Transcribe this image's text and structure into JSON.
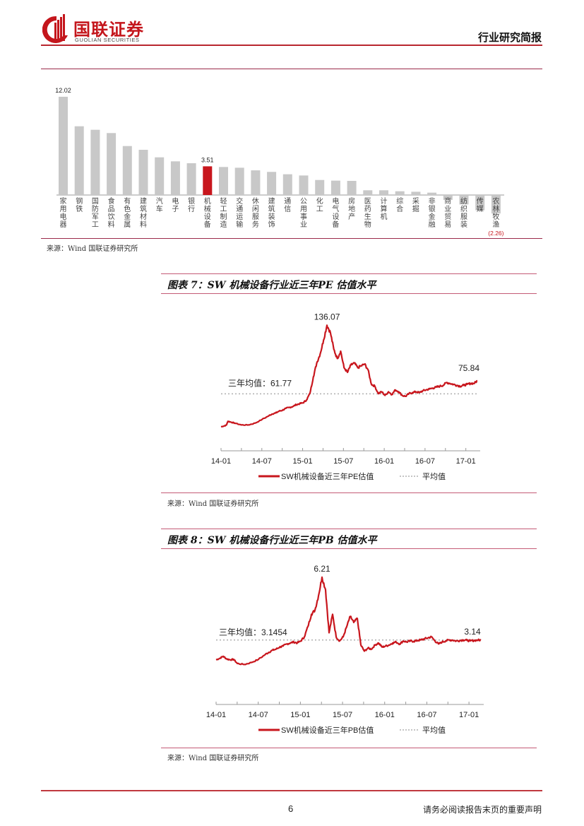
{
  "header": {
    "logo_cn": "国联证券",
    "logo_en": "GUOLIAN SECURITIES",
    "doc_type": "行业研究简报",
    "brand_color": "#c4161c"
  },
  "bar_chart_section": {
    "source": "来源：Wind   国联证券研究所"
  },
  "figure7": {
    "title": "图表 7：SW 机械设备行业近三年PE 估值水平",
    "source": "来源：Wind   国联证券研究所"
  },
  "figure8": {
    "title": "图表 8：SW 机械设备行业近三年PB 估值水平",
    "source": "来源：Wind   国联证券研究所"
  },
  "footer": {
    "page_number": "6",
    "disclaimer": "请务必阅读报告末页的重要声明"
  },
  "chart_data": [
    {
      "type": "bar",
      "title": "",
      "xlabel": "",
      "ylabel": "",
      "categories": [
        "家用电器",
        "钢铁",
        "国防军工",
        "食品饮料",
        "有色金属",
        "建筑材料",
        "汽车",
        "电子",
        "银行",
        "机械设备",
        "轻工制造",
        "交通运输",
        "休闲服务",
        "建筑装饰",
        "通信",
        "公用事业",
        "化工",
        "电气设备",
        "房地产",
        "医药生物",
        "计算机",
        "综合",
        "采掘",
        "非银金融",
        "商业贸易",
        "纺织服装",
        "传媒",
        "农林牧渔"
      ],
      "values": [
        12.02,
        8.41,
        7.98,
        7.58,
        5.99,
        5.53,
        4.61,
        4.12,
        3.89,
        3.51,
        3.43,
        3.34,
        3.02,
        2.83,
        2.54,
        2.39,
        1.84,
        1.76,
        1.73,
        0.58,
        0.58,
        0.46,
        0.4,
        0.29,
        -0.6,
        -1.15,
        -1.87,
        -2.26
      ],
      "data_labels": [
        {
          "category": "家用电器",
          "text": "12.02"
        },
        {
          "category": "机械设备",
          "text": "3.51"
        },
        {
          "category": "农林牧渔",
          "text": "(2.26)"
        }
      ],
      "highlight_category": "机械设备",
      "colors": {
        "default": "#c8c8c8",
        "highlight": "#c8161d",
        "negative_label": "#c8161d"
      },
      "grid": false,
      "legend": "none"
    },
    {
      "type": "line",
      "title": "SW 机械设备行业近三年PE 估值水平",
      "x_ticks": [
        "14-01",
        "14-07",
        "15-01",
        "15-07",
        "16-01",
        "16-07",
        "17-01"
      ],
      "ylim": [
        0,
        140
      ],
      "grid": false,
      "legend_position": "bottom",
      "series": [
        {
          "name": "SW机械设备近三年PE估值",
          "color": "#c8161d",
          "style": "solid",
          "x": [
            0,
            0.5,
            0.8,
            1,
            1.5,
            2,
            3,
            4,
            5,
            6,
            7,
            7.5,
            8,
            8.5,
            9,
            9.5,
            10,
            10.5,
            11,
            11.5,
            12,
            12.5,
            13,
            13.5,
            14,
            14.5,
            15,
            15.5,
            16,
            16.5,
            17,
            17.5,
            18,
            18.5,
            19,
            19.5,
            20,
            20.5,
            21,
            21.5,
            22,
            22.5,
            23,
            23.5,
            24,
            24.5,
            25,
            25.5,
            26,
            26.5,
            27,
            27.5,
            28,
            28.5,
            29,
            29.5,
            30,
            30.5,
            31,
            31.5,
            32,
            32.5,
            33,
            33.5,
            34,
            34.5,
            35,
            35.5,
            36,
            36.5,
            37,
            37.5
          ],
          "values": [
            26,
            27,
            28,
            32,
            31,
            30,
            28,
            28,
            30,
            34,
            38,
            40,
            41,
            43,
            44,
            46,
            47,
            48,
            50,
            51,
            52,
            55,
            62,
            80,
            95,
            105,
            120,
            136.07,
            128,
            110,
            100,
            108,
            90,
            85,
            93,
            95,
            90,
            92,
            94,
            88,
            72,
            70,
            62,
            64,
            60,
            64,
            61,
            66,
            64,
            60,
            59,
            62,
            63,
            64,
            63,
            65,
            66,
            67,
            68,
            69,
            70,
            71,
            74,
            73,
            72,
            71,
            70,
            71,
            72,
            73,
            73,
            75.84
          ]
        },
        {
          "name": "平均值",
          "color": "#b0b0b0",
          "style": "dotted",
          "value": 61.77
        }
      ],
      "annotations": [
        "136.07",
        "75.84",
        "三年均值：61.77"
      ]
    },
    {
      "type": "line",
      "title": "SW 机械设备行业近三年PB 估值水平",
      "x_ticks": [
        "14-01",
        "14-07",
        "15-01",
        "15-07",
        "16-01",
        "16-07",
        "17-01"
      ],
      "ylim": [
        0,
        6.5
      ],
      "grid": false,
      "legend_position": "bottom",
      "series": [
        {
          "name": "SW机械设备近三年PB估值",
          "color": "#c8161d",
          "style": "solid",
          "x": [
            0,
            0.5,
            1,
            1.5,
            2,
            2.5,
            3,
            4,
            5,
            6,
            7,
            7.5,
            8,
            8.5,
            9,
            9.5,
            10,
            10.5,
            11,
            11.5,
            12,
            12.5,
            13,
            13.5,
            14,
            14.5,
            15,
            15.5,
            16,
            16.5,
            17,
            17.5,
            18,
            18.5,
            19,
            19.5,
            20,
            20.5,
            21,
            21.5,
            22,
            22.5,
            23,
            23.5,
            24,
            24.5,
            25,
            25.5,
            26,
            26.5,
            27,
            27.5,
            28,
            28.5,
            29,
            29.5,
            30,
            30.5,
            31,
            31.5,
            32,
            32.5,
            33,
            33.5,
            34,
            34.5,
            35,
            35.5,
            36,
            36.5,
            37,
            37.5
          ],
          "values": [
            2.18,
            2.25,
            2.35,
            2.22,
            2.18,
            2.2,
            2.0,
            1.95,
            2.05,
            2.2,
            2.45,
            2.55,
            2.65,
            2.7,
            2.8,
            2.85,
            2.95,
            3.0,
            3.05,
            3.0,
            3.1,
            3.3,
            3.8,
            4.4,
            4.6,
            5.3,
            6.21,
            5.6,
            3.5,
            4.4,
            3.3,
            3.1,
            3.3,
            3.8,
            4.3,
            4.0,
            4.2,
            2.9,
            2.6,
            2.75,
            2.7,
            2.9,
            3.0,
            2.8,
            2.85,
            2.9,
            3.0,
            3.05,
            2.95,
            3.1,
            3.05,
            3.1,
            3.08,
            3.12,
            3.15,
            3.2,
            3.25,
            3.3,
            3.1,
            2.95,
            3.05,
            3.1,
            3.15,
            3.14,
            3.1,
            3.12,
            3.15,
            3.13,
            3.1,
            3.12,
            3.14,
            3.14
          ],
          "note": "approximate shape read from figure"
        },
        {
          "name": "平均值",
          "color": "#b0b0b0",
          "style": "dotted",
          "value": 3.1454
        }
      ],
      "annotations": [
        "6.21",
        "3.14",
        "三年均值：3.1454"
      ]
    }
  ]
}
